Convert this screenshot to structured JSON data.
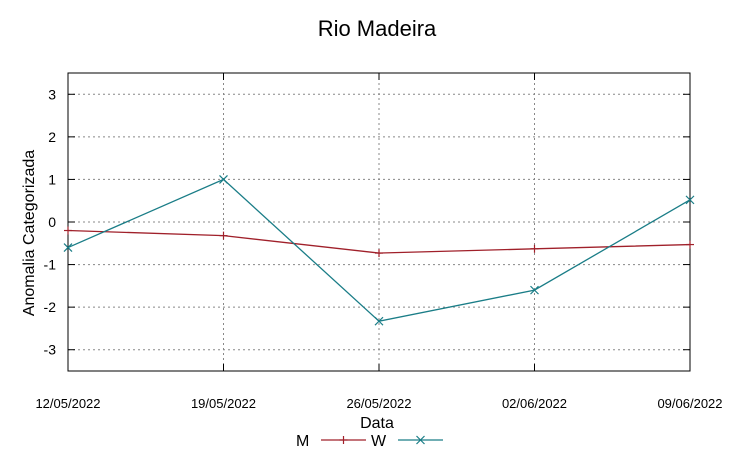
{
  "chart_data": {
    "type": "line",
    "title": "Rio Madeira",
    "xlabel": "Data",
    "ylabel": "Anomalia Categorizada",
    "categories": [
      "12/05/2022",
      "19/05/2022",
      "26/05/2022",
      "02/06/2022",
      "09/06/2022"
    ],
    "yticks": [
      "3",
      "2",
      "1",
      "0",
      "-1",
      "-2",
      "-3"
    ],
    "ylim": [
      -3.5,
      3.5
    ],
    "grid": true,
    "series": [
      {
        "name": "M",
        "color": "#a0202a",
        "marker": "+",
        "values": [
          -0.2,
          -0.32,
          -0.73,
          -0.63,
          -0.53
        ]
      },
      {
        "name": "W",
        "color": "#1a7d87",
        "marker": "x",
        "values": [
          -0.6,
          1.0,
          -2.33,
          -1.6,
          0.52
        ]
      }
    ]
  }
}
